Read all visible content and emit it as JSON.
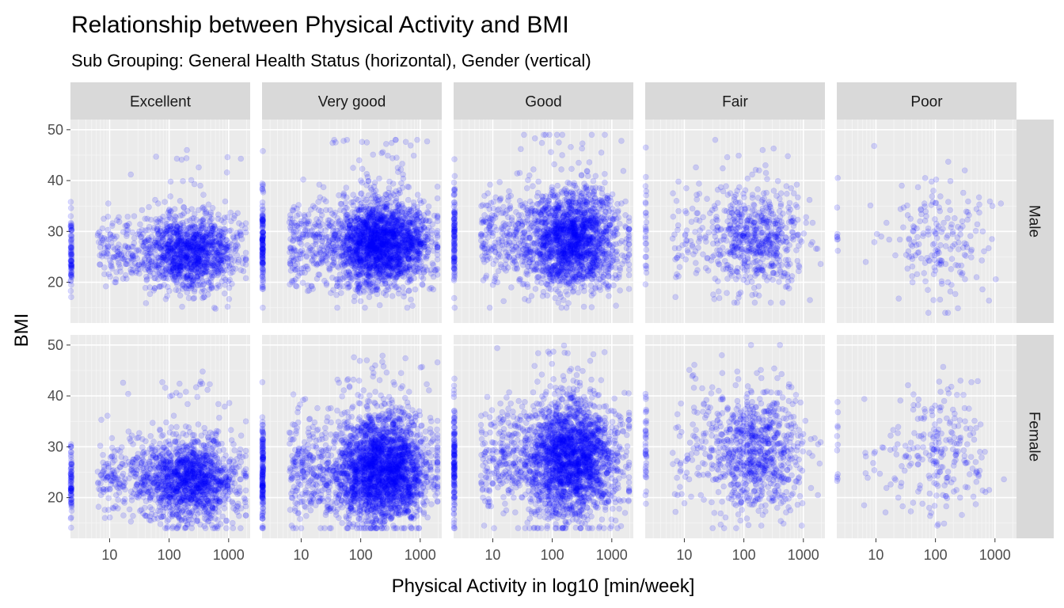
{
  "chart_data": {
    "type": "scatter",
    "title": "Relationship between Physical Activity and BMI",
    "subtitle": "Sub Grouping: General Health Status (horizontal), Gender (vertical)",
    "xlabel": "Physical Activity in log10 [min/week]",
    "ylabel": "BMI",
    "x_scale": "log10",
    "xlim": [
      2.2,
      2300
    ],
    "ylim": [
      12,
      52
    ],
    "x_ticks": [
      10,
      100,
      1000
    ],
    "x_tick_labels": [
      "10",
      "100",
      "1000"
    ],
    "y_ticks": [
      20,
      30,
      40,
      50
    ],
    "y_tick_labels": [
      "20",
      "30",
      "40",
      "50"
    ],
    "grid": true,
    "point_color": "#0000ff",
    "point_opacity": 0.15,
    "facet_columns": [
      "Excellent",
      "Very good",
      "Good",
      "Fair",
      "Poor"
    ],
    "facet_rows": [
      "Male",
      "Female"
    ],
    "panels": [
      {
        "row": "Male",
        "column": "Excellent",
        "n_points": 1500,
        "x_center": 250,
        "y_center": 26,
        "y_sd": 3.6,
        "y_range": [
          14,
          46
        ]
      },
      {
        "row": "Male",
        "column": "Very good",
        "n_points": 2600,
        "x_center": 250,
        "y_center": 27.5,
        "y_sd": 4.2,
        "y_range": [
          15,
          48
        ]
      },
      {
        "row": "Male",
        "column": "Good",
        "n_points": 2200,
        "x_center": 230,
        "y_center": 28.5,
        "y_sd": 4.8,
        "y_range": [
          15,
          49
        ]
      },
      {
        "row": "Male",
        "column": "Fair",
        "n_points": 700,
        "x_center": 180,
        "y_center": 28.5,
        "y_sd": 5.2,
        "y_range": [
          16,
          48
        ]
      },
      {
        "row": "Male",
        "column": "Poor",
        "n_points": 200,
        "x_center": 150,
        "y_center": 28,
        "y_sd": 5.8,
        "y_range": [
          14,
          49
        ]
      },
      {
        "row": "Female",
        "column": "Excellent",
        "n_points": 1700,
        "x_center": 250,
        "y_center": 23.5,
        "y_sd": 4.0,
        "y_range": [
          14,
          50
        ]
      },
      {
        "row": "Female",
        "column": "Very good",
        "n_points": 3000,
        "x_center": 250,
        "y_center": 25.5,
        "y_sd": 5.2,
        "y_range": [
          14,
          50
        ]
      },
      {
        "row": "Female",
        "column": "Good",
        "n_points": 2600,
        "x_center": 230,
        "y_center": 27.5,
        "y_sd": 5.8,
        "y_range": [
          14,
          50
        ]
      },
      {
        "row": "Female",
        "column": "Fair",
        "n_points": 900,
        "x_center": 180,
        "y_center": 29,
        "y_sd": 6.2,
        "y_range": [
          14,
          50
        ]
      },
      {
        "row": "Female",
        "column": "Poor",
        "n_points": 250,
        "x_center": 150,
        "y_center": 28.5,
        "y_sd": 6.5,
        "y_range": [
          14,
          50
        ]
      }
    ]
  }
}
